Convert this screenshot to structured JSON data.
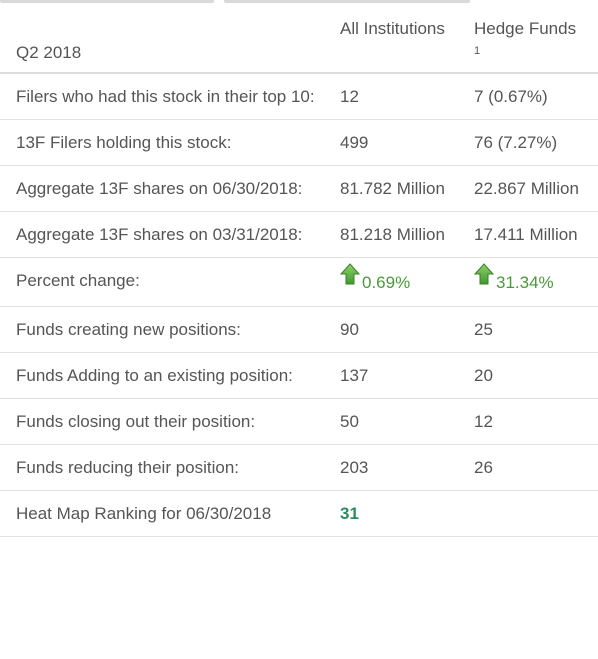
{
  "header": {
    "period": "Q2 2018",
    "col_all": "All Institutions",
    "col_hedge": "Hedge Funds",
    "hedge_footnote": "1"
  },
  "rows": [
    {
      "label": "Filers who had this stock in their top 10:",
      "all": "12",
      "hedge": "7 (0.67%)"
    },
    {
      "label": "13F Filers holding this stock:",
      "all": "499",
      "hedge": "76 (7.27%)"
    },
    {
      "label": "Aggregate 13F shares on 06/30/2018:",
      "all": "81.782 Million",
      "hedge": "22.867 Million"
    },
    {
      "label": "Aggregate 13F shares on 03/31/2018:",
      "all": "81.218 Million",
      "hedge": "17.411 Million"
    },
    {
      "label": "Percent change:",
      "all": "0.69%",
      "hedge": "31.34%"
    },
    {
      "label": "Funds creating new positions:",
      "all": "90",
      "hedge": "25"
    },
    {
      "label": "Funds Adding to an existing position:",
      "all": "137",
      "hedge": "20"
    },
    {
      "label": "Funds closing out their position:",
      "all": "50",
      "hedge": "12"
    },
    {
      "label": "Funds reducing their position:",
      "all": "203",
      "hedge": "26"
    },
    {
      "label": "Heat Map Ranking for 06/30/2018",
      "all": "31"
    }
  ],
  "icons": {
    "percent_change_arrow": "up-arrow-icon"
  },
  "colors": {
    "positive": "#4a9a3a",
    "rank_link": "#2c8c5c"
  }
}
